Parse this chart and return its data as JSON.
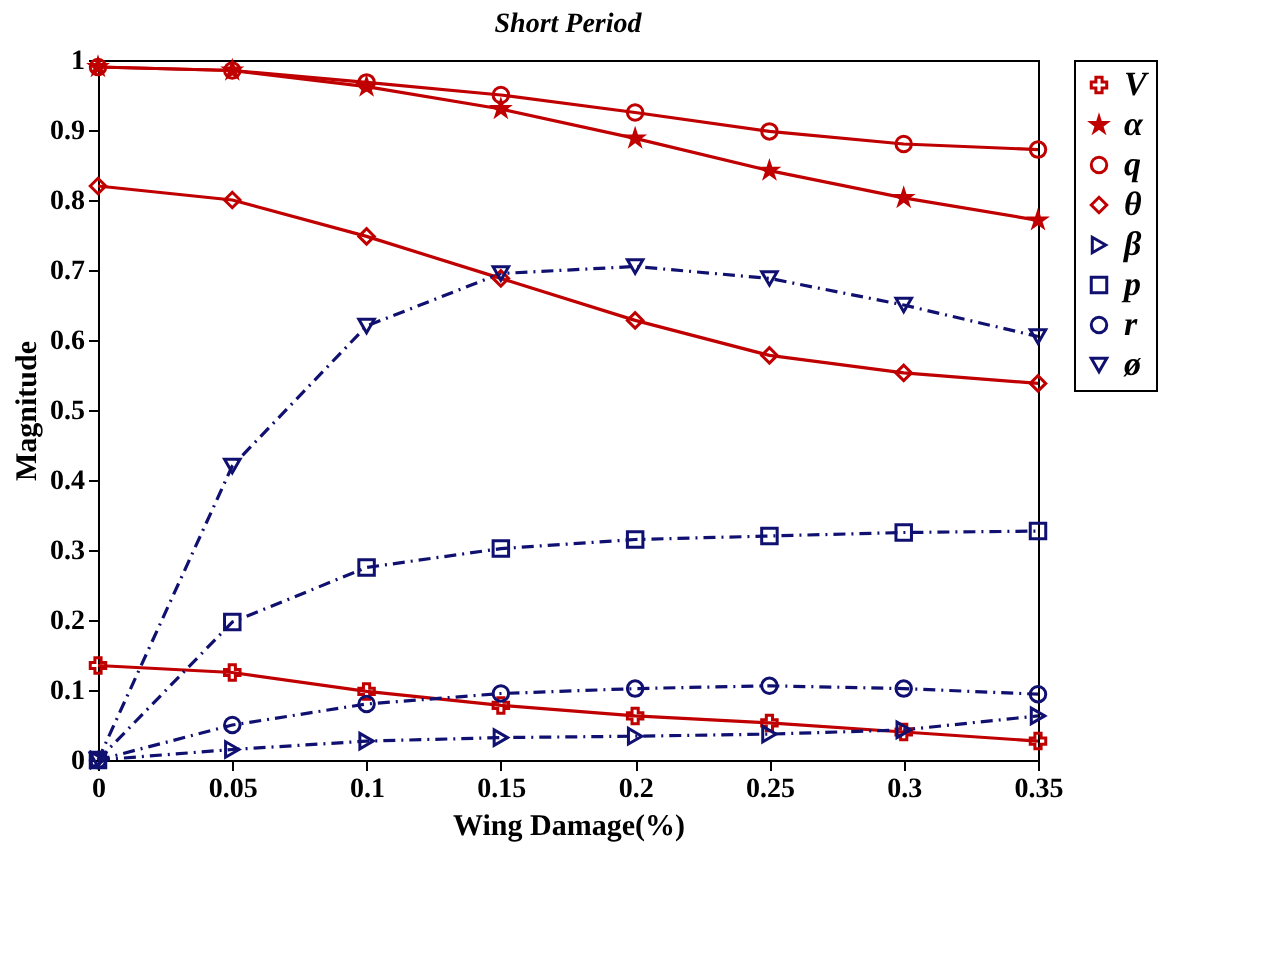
{
  "chart_data": {
    "type": "line",
    "title": "Short Period",
    "xlabel": "Wing Damage(%)",
    "ylabel": "Magnitude",
    "x": [
      0,
      0.05,
      0.1,
      0.15,
      0.2,
      0.25,
      0.3,
      0.35
    ],
    "series": [
      {
        "name": "V",
        "color": "#c00000",
        "marker": "cross",
        "line_style": "solid",
        "values": [
          0.135,
          0.125,
          0.098,
          0.078,
          0.063,
          0.053,
          0.04,
          0.027
        ]
      },
      {
        "name": "α",
        "color": "#c00000",
        "marker": "star",
        "line_style": "solid",
        "values": [
          0.99,
          0.985,
          0.962,
          0.93,
          0.888,
          0.842,
          0.803,
          0.771
        ]
      },
      {
        "name": "q",
        "color": "#c00000",
        "marker": "circle",
        "line_style": "solid",
        "values": [
          0.99,
          0.985,
          0.968,
          0.95,
          0.925,
          0.898,
          0.88,
          0.872
        ]
      },
      {
        "name": "θ",
        "color": "#c00000",
        "marker": "diamond",
        "line_style": "solid",
        "values": [
          0.82,
          0.8,
          0.748,
          0.688,
          0.628,
          0.578,
          0.553,
          0.538
        ]
      },
      {
        "name": "β",
        "color": "#101070",
        "marker": "triangle-right",
        "line_style": "dashdot",
        "values": [
          0,
          0.015,
          0.027,
          0.032,
          0.034,
          0.037,
          0.043,
          0.063
        ]
      },
      {
        "name": "p",
        "color": "#101070",
        "marker": "square",
        "line_style": "dashdot",
        "values": [
          0,
          0.197,
          0.275,
          0.302,
          0.315,
          0.32,
          0.325,
          0.327
        ]
      },
      {
        "name": "r",
        "color": "#101070",
        "marker": "circle",
        "line_style": "dashdot",
        "values": [
          0,
          0.05,
          0.08,
          0.095,
          0.102,
          0.106,
          0.102,
          0.094
        ]
      },
      {
        "name": "ø",
        "color": "#101070",
        "marker": "triangle-down",
        "line_style": "dashdot",
        "values": [
          0,
          0.42,
          0.62,
          0.695,
          0.705,
          0.688,
          0.65,
          0.605
        ]
      }
    ],
    "xlim": [
      0,
      0.35
    ],
    "xticks": [
      0,
      0.05,
      0.1,
      0.15,
      0.2,
      0.25,
      0.3,
      0.35
    ],
    "ylim": [
      0,
      1
    ],
    "yticks": [
      0,
      0.1,
      0.2,
      0.3,
      0.4,
      0.5,
      0.6,
      0.7,
      0.8,
      0.9,
      1
    ],
    "grid": false,
    "legend": "top right"
  }
}
